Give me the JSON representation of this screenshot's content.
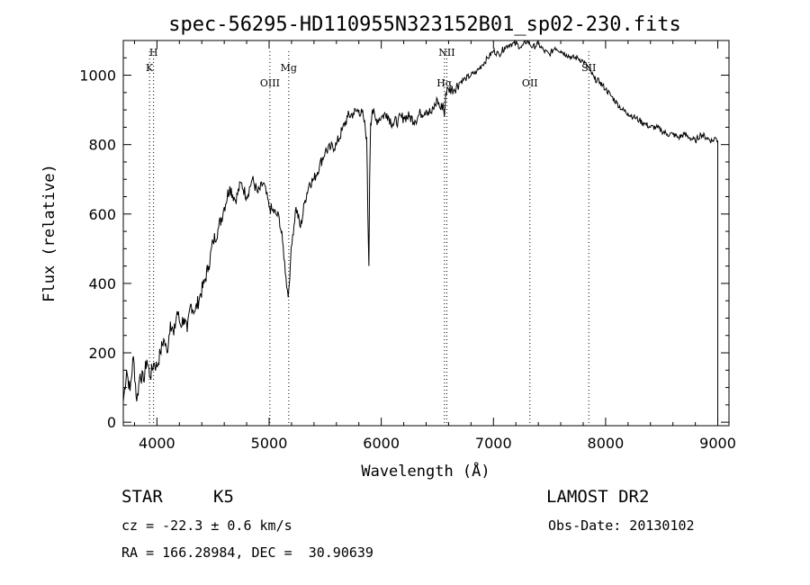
{
  "chart_data": {
    "type": "line",
    "title": "spec-56295-HD110955N323152B01_sp02-230.fits",
    "xlabel": "Wavelength (Å)",
    "ylabel": "Flux (relative)",
    "xlim": [
      3700,
      9100
    ],
    "ylim": [
      -10,
      1100
    ],
    "xticks": [
      4000,
      5000,
      6000,
      7000,
      8000,
      9000
    ],
    "yticks": [
      0,
      200,
      400,
      600,
      800,
      1000
    ],
    "grid": false,
    "series": [
      {
        "x": [
          3700,
          3730,
          3760,
          3790,
          3820,
          3850,
          3880,
          3910,
          3940,
          3970,
          4000,
          4030,
          4060,
          4090,
          4120,
          4150,
          4180,
          4210,
          4240,
          4270,
          4300,
          4340,
          4380,
          4420,
          4460,
          4500,
          4550,
          4600,
          4650,
          4700,
          4750,
          4800,
          4850,
          4900,
          4950,
          5000,
          5030,
          5060,
          5090,
          5120,
          5150,
          5170,
          5190,
          5210,
          5240,
          5280,
          5320,
          5360,
          5400,
          5450,
          5500,
          5550,
          5600,
          5650,
          5700,
          5750,
          5800,
          5840,
          5870,
          5880,
          5890,
          5896,
          5905,
          5920,
          5950,
          6000,
          6050,
          6100,
          6150,
          6200,
          6250,
          6300,
          6350,
          6400,
          6450,
          6500,
          6530,
          6550,
          6563,
          6575,
          6600,
          6650,
          6700,
          6750,
          6800,
          6850,
          6900,
          6950,
          7000,
          7050,
          7100,
          7150,
          7200,
          7250,
          7300,
          7350,
          7400,
          7450,
          7500,
          7550,
          7600,
          7650,
          7700,
          7750,
          7800,
          7850,
          7900,
          7950,
          8000,
          8050,
          8100,
          8150,
          8200,
          8250,
          8300,
          8350,
          8400,
          8450,
          8500,
          8550,
          8600,
          8650,
          8700,
          8750,
          8800,
          8850,
          8900,
          8950,
          8980,
          9000
        ],
        "y": [
          60,
          150,
          90,
          190,
          60,
          140,
          120,
          180,
          130,
          170,
          160,
          200,
          240,
          200,
          290,
          250,
          320,
          280,
          300,
          260,
          340,
          320,
          360,
          400,
          450,
          520,
          560,
          620,
          680,
          640,
          690,
          650,
          700,
          660,
          690,
          620,
          610,
          600,
          590,
          520,
          420,
          360,
          460,
          540,
          620,
          560,
          640,
          690,
          700,
          740,
          780,
          790,
          800,
          840,
          880,
          890,
          900,
          880,
          820,
          600,
          450,
          700,
          860,
          900,
          870,
          880,
          890,
          860,
          870,
          880,
          880,
          870,
          890,
          900,
          890,
          930,
          900,
          920,
          880,
          950,
          960,
          960,
          980,
          990,
          1000,
          1010,
          1030,
          1050,
          1070,
          1060,
          1080,
          1090,
          1090,
          1080,
          1100,
          1080,
          1090,
          1070,
          1060,
          1080,
          1070,
          1060,
          1050,
          1050,
          1040,
          1020,
          990,
          980,
          960,
          940,
          920,
          900,
          890,
          880,
          870,
          860,
          850,
          850,
          840,
          830,
          830,
          820,
          830,
          820,
          810,
          830,
          820,
          810,
          820,
          810
        ]
      }
    ],
    "line_marks": [
      {
        "label": "H",
        "x": 3970,
        "row": "top"
      },
      {
        "label": "K",
        "x": 3934,
        "row": "second"
      },
      {
        "label": "OIII",
        "x": 5007,
        "row": "third"
      },
      {
        "label": "Mg",
        "x": 5175,
        "row": "second"
      },
      {
        "label": "NII",
        "x": 6584,
        "row": "top"
      },
      {
        "label": "Hα",
        "x": 6563,
        "row": "third"
      },
      {
        "label": "OII",
        "x": 7325,
        "row": "third"
      },
      {
        "label": "SII",
        "x": 7850,
        "row": "second"
      }
    ]
  },
  "info": {
    "object_class": "STAR",
    "subclass": "K5",
    "survey": "LAMOST DR2",
    "redshift": "cz = -22.3 ± 0.6 km/s",
    "obs_date": "Obs-Date: 20130102",
    "coords": "RA = 166.28984, DEC =  30.90639"
  }
}
